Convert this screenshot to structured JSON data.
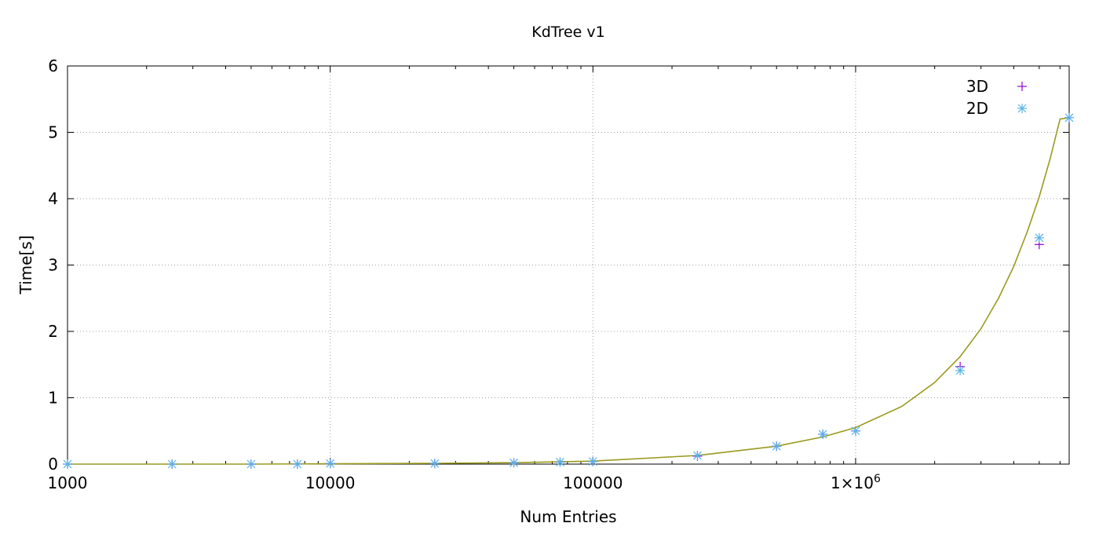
{
  "chart_data": {
    "type": "scatter",
    "title": "KdTree v1",
    "xlabel": "Num Entries",
    "ylabel": "Time[s]",
    "x_scale": "log",
    "xlim": [
      1000,
      6500000
    ],
    "ylim": [
      0,
      6
    ],
    "grid": true,
    "legend_position": "top-right",
    "x_ticks": [
      {
        "value": 1000,
        "label": "1000"
      },
      {
        "value": 10000,
        "label": "10000"
      },
      {
        "value": 100000,
        "label": "100000"
      },
      {
        "value": 1000000,
        "label": "1×10",
        "sup": "6"
      }
    ],
    "y_ticks": [
      {
        "value": 0,
        "label": "0"
      },
      {
        "value": 1,
        "label": "1"
      },
      {
        "value": 2,
        "label": "2"
      },
      {
        "value": 3,
        "label": "3"
      },
      {
        "value": 4,
        "label": "4"
      },
      {
        "value": 5,
        "label": "5"
      },
      {
        "value": 6,
        "label": "6"
      }
    ],
    "series": [
      {
        "name": "3D",
        "marker": "plus",
        "color": "#9400d3",
        "x": [
          1000,
          2500,
          5000,
          7500,
          10000,
          25000,
          50000,
          75000,
          100000,
          250000,
          500000,
          750000,
          1000000,
          2500000,
          5000000,
          6500000
        ],
        "y": [
          0.0,
          0.0,
          0.0,
          0.0,
          0.01,
          0.01,
          0.02,
          0.03,
          0.04,
          0.12,
          0.27,
          0.45,
          0.5,
          1.47,
          3.31,
          5.22
        ]
      },
      {
        "name": "2D",
        "marker": "star",
        "color": "#56b4e9",
        "x": [
          1000,
          2500,
          5000,
          7500,
          10000,
          25000,
          50000,
          75000,
          100000,
          250000,
          500000,
          750000,
          1000000,
          2500000,
          5000000,
          6500000
        ],
        "y": [
          0.0,
          0.0,
          0.0,
          0.0,
          0.01,
          0.01,
          0.02,
          0.03,
          0.04,
          0.13,
          0.27,
          0.45,
          0.5,
          1.41,
          3.41,
          5.22
        ]
      }
    ],
    "fit_curve": {
      "color": "#9a9a1e",
      "x": [
        1000,
        2000,
        5000,
        10000,
        25000,
        50000,
        100000,
        250000,
        500000,
        750000,
        1000000,
        1500000,
        2000000,
        2500000,
        3000000,
        3500000,
        4000000,
        4500000,
        5000000,
        5500000,
        6000000,
        6500000
      ],
      "y": [
        0.0,
        0.0,
        0.0,
        0.005,
        0.012,
        0.022,
        0.045,
        0.13,
        0.27,
        0.41,
        0.55,
        0.87,
        1.23,
        1.62,
        2.04,
        2.5,
        2.98,
        3.5,
        4.03,
        4.6,
        5.2,
        5.22
      ]
    }
  }
}
